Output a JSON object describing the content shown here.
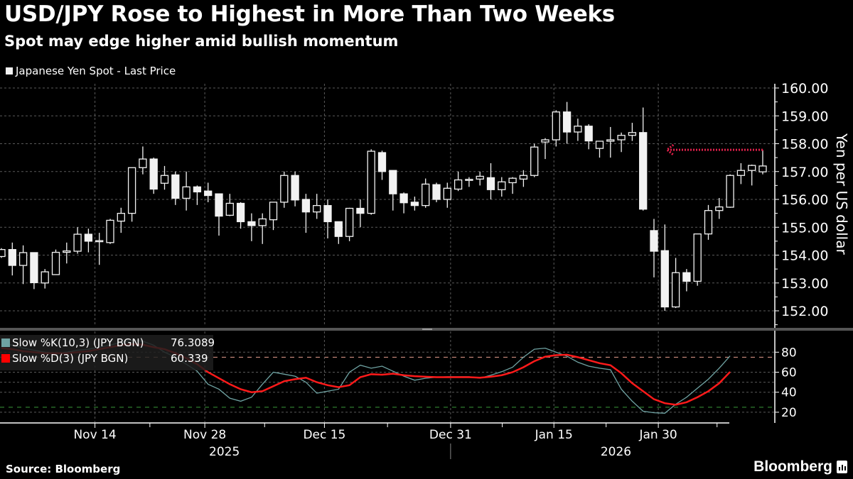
{
  "header": {
    "title": "USD/JPY Rose to Highest in More Than Two Weeks",
    "subtitle": "Spot may edge higher amid bullish momentum"
  },
  "footer": {
    "source": "Source: Bloomberg",
    "logo": "Bloomberg"
  },
  "colors": {
    "candle": "#f2f2f2",
    "k_line": "#6fa3a3",
    "d_line": "#ff1a1a",
    "overbought": "#e8a090",
    "oversold": "#3a9a3a",
    "arrow": "#e0204a"
  },
  "chart_data": [
    {
      "type": "candlestick",
      "legend": "Japanese Yen Spot - Last Price",
      "ylabel": "Yen per US dollar",
      "ylim": [
        152,
        160
      ],
      "yticks": [
        "160.00",
        "159.00",
        "158.00",
        "157.00",
        "156.00",
        "155.00",
        "154.00",
        "153.00",
        "152.00"
      ],
      "xticks": [
        {
          "label": "Nov 14",
          "index": 8.6
        },
        {
          "label": "Nov 28",
          "index": 18.7
        },
        {
          "label": "Dec 15",
          "index": 29.7
        },
        {
          "label": "Dec 31",
          "index": 41.3
        },
        {
          "label": "Jan 15",
          "index": 50.8
        },
        {
          "label": "Jan 30",
          "index": 60.4
        }
      ],
      "years": [
        {
          "label": "2025",
          "index": 20.5
        },
        {
          "label": "2026",
          "index": 56.5
        }
      ],
      "annotation": {
        "type": "arrow-left",
        "price": 157.78,
        "from_index": 70,
        "to_index": 61
      },
      "ohlc": [
        [
          153.95,
          154.25,
          153.9,
          154.2
        ],
        [
          154.2,
          154.45,
          153.27,
          153.63
        ],
        [
          153.63,
          154.35,
          152.96,
          154.09
        ],
        [
          154.09,
          154.1,
          152.78,
          153.01
        ],
        [
          153.0,
          153.5,
          152.8,
          153.4
        ],
        [
          153.3,
          154.2,
          153.3,
          154.1
        ],
        [
          154.1,
          154.45,
          153.7,
          154.15
        ],
        [
          154.14,
          155.0,
          154.05,
          154.75
        ],
        [
          154.75,
          154.95,
          154.1,
          154.5
        ],
        [
          154.5,
          154.8,
          153.65,
          154.52
        ],
        [
          154.45,
          155.3,
          154.4,
          155.25
        ],
        [
          155.22,
          155.7,
          154.8,
          155.5
        ],
        [
          155.5,
          157.14,
          155.2,
          157.14
        ],
        [
          157.14,
          157.9,
          156.9,
          157.45
        ],
        [
          157.45,
          157.5,
          156.2,
          156.37
        ],
        [
          156.58,
          157.2,
          156.35,
          156.86
        ],
        [
          156.88,
          157.0,
          155.8,
          156.04
        ],
        [
          156.04,
          157.0,
          155.6,
          156.45
        ],
        [
          156.45,
          156.5,
          155.8,
          156.27
        ],
        [
          156.3,
          156.6,
          155.9,
          156.14
        ],
        [
          156.2,
          156.2,
          154.7,
          155.4
        ],
        [
          155.43,
          156.2,
          155.4,
          155.86
        ],
        [
          155.86,
          155.9,
          154.95,
          155.2
        ],
        [
          155.2,
          155.5,
          154.5,
          155.06
        ],
        [
          155.06,
          155.5,
          154.4,
          155.3
        ],
        [
          155.27,
          155.9,
          154.9,
          155.9
        ],
        [
          155.9,
          157.0,
          155.7,
          156.86
        ],
        [
          156.86,
          157.0,
          155.75,
          155.98
        ],
        [
          156.0,
          156.2,
          154.8,
          155.55
        ],
        [
          155.55,
          156.2,
          155.3,
          155.78
        ],
        [
          155.78,
          156.0,
          154.6,
          155.2
        ],
        [
          155.2,
          155.2,
          154.4,
          154.67
        ],
        [
          154.67,
          155.7,
          154.5,
          155.68
        ],
        [
          155.68,
          156.0,
          155.0,
          155.5
        ],
        [
          155.5,
          157.8,
          155.45,
          157.73
        ],
        [
          157.68,
          157.75,
          156.7,
          157.0
        ],
        [
          157.04,
          157.04,
          155.6,
          156.2
        ],
        [
          156.2,
          156.25,
          155.5,
          155.88
        ],
        [
          155.9,
          156.1,
          155.6,
          155.78
        ],
        [
          155.78,
          156.75,
          155.7,
          156.55
        ],
        [
          156.53,
          156.6,
          155.9,
          156.0
        ],
        [
          156.0,
          156.6,
          155.7,
          156.4
        ],
        [
          156.37,
          157.0,
          156.3,
          156.7
        ],
        [
          156.7,
          156.8,
          156.45,
          156.72
        ],
        [
          156.73,
          157.0,
          156.5,
          156.83
        ],
        [
          156.78,
          157.3,
          156.0,
          156.35
        ],
        [
          156.35,
          156.8,
          156.1,
          156.63
        ],
        [
          156.6,
          156.8,
          156.2,
          156.76
        ],
        [
          156.73,
          157.05,
          156.45,
          156.86
        ],
        [
          156.86,
          158.0,
          156.8,
          157.88
        ],
        [
          158.06,
          158.2,
          157.45,
          158.14
        ],
        [
          158.14,
          159.2,
          157.9,
          159.14
        ],
        [
          159.14,
          159.5,
          158.0,
          158.42
        ],
        [
          158.42,
          158.9,
          158.1,
          158.63
        ],
        [
          158.63,
          158.7,
          157.8,
          158.1
        ],
        [
          157.83,
          158.1,
          157.5,
          158.09
        ],
        [
          158.09,
          158.6,
          157.5,
          158.14
        ],
        [
          158.14,
          158.4,
          157.7,
          158.3
        ],
        [
          158.3,
          158.75,
          158.1,
          158.4
        ],
        [
          158.4,
          159.3,
          155.6,
          155.65
        ],
        [
          154.88,
          155.3,
          153.2,
          154.14
        ],
        [
          154.16,
          155.1,
          152.0,
          152.14
        ],
        [
          152.14,
          153.9,
          152.1,
          153.37
        ],
        [
          153.37,
          153.5,
          152.7,
          153.06
        ],
        [
          153.06,
          154.76,
          152.9,
          154.76
        ],
        [
          154.76,
          155.8,
          154.55,
          155.6
        ],
        [
          155.6,
          156.05,
          155.3,
          155.73
        ],
        [
          155.72,
          156.9,
          155.7,
          156.86
        ],
        [
          156.86,
          157.3,
          156.55,
          157.04
        ],
        [
          157.04,
          157.25,
          156.5,
          157.22
        ],
        [
          156.99,
          157.75,
          156.9,
          157.2
        ]
      ]
    },
    {
      "type": "line",
      "ylim": [
        15,
        100
      ],
      "yticks": [
        "80",
        "60",
        "40",
        "20"
      ],
      "reference_lines": [
        75,
        25
      ],
      "series": [
        {
          "name": "Slow %K(10,3) (JPY BGN)",
          "last": "76.3089",
          "values": [
            89,
            87,
            84,
            82,
            80,
            79,
            80,
            82,
            83,
            85,
            87,
            90,
            92,
            91,
            87,
            80,
            75,
            68,
            61,
            48,
            43,
            34,
            31,
            35,
            48,
            60,
            58,
            56,
            50,
            39,
            41,
            43,
            60,
            67,
            64,
            66,
            61,
            56,
            52,
            54,
            55,
            55.5,
            55.5,
            55.5,
            54,
            57,
            60.5,
            65,
            75,
            83,
            84,
            80,
            76,
            70,
            66,
            64,
            62.5,
            43,
            31,
            21,
            19.5,
            19,
            28,
            35,
            44,
            53,
            64,
            76.31
          ]
        },
        {
          "name": "Slow %D(3) (JPY BGN)",
          "last": "60.339",
          "values": [
            84,
            83,
            81,
            80,
            79,
            79,
            79,
            80,
            81,
            83,
            85,
            87,
            88,
            87.5,
            85,
            83,
            79,
            74,
            68,
            60,
            54,
            48,
            43,
            40,
            41,
            46,
            51,
            53,
            54.5,
            50,
            47,
            45,
            47,
            55,
            58,
            57.5,
            58.5,
            57,
            56,
            55.5,
            55,
            55,
            55,
            55,
            54.5,
            55.5,
            57,
            60,
            65,
            71,
            75.5,
            77,
            77.5,
            75,
            72,
            69,
            67,
            59,
            49,
            41,
            33,
            29,
            27.5,
            30,
            35,
            41,
            49,
            60.34
          ]
        }
      ]
    }
  ]
}
